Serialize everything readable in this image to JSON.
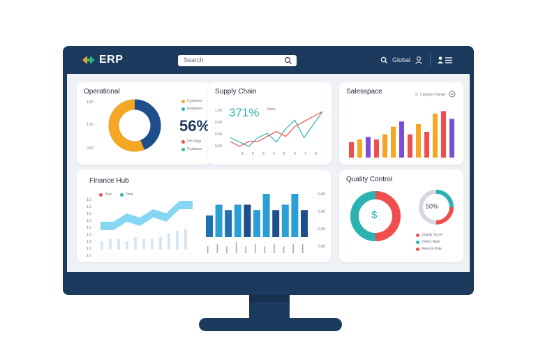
{
  "app": {
    "logo_text": "ERP"
  },
  "search": {
    "placeholder": "Search"
  },
  "topbar": {
    "user_label": "Global"
  },
  "colors": {
    "frame": "#1c3a5e",
    "screen": "#eef1f6",
    "navy": "#1f4e8c",
    "orange": "#f5a623",
    "green": "#2bbf8a",
    "teal": "#2ab3b1",
    "red": "#f04e4e",
    "purple": "#7a4ed9",
    "lightblue": "#6fcff0"
  },
  "operational": {
    "title": "Operational",
    "y_ticks": [
      "1/10",
      "1.00",
      "0.00"
    ],
    "value": "56%",
    "legend": [
      {
        "label": "Customer",
        "color": "#f5a623"
      },
      {
        "label": "Employee",
        "color": "#2ab3b1"
      },
      {
        "label": "Oth Orgs",
        "color": "#f04e4e"
      },
      {
        "label": "Customer",
        "color": "#2bbf8a"
      }
    ],
    "chart_data": {
      "type": "pie",
      "values": [
        44,
        56
      ],
      "colors": [
        "#1f4e8c",
        "#f5a623"
      ],
      "center_label": "56%"
    }
  },
  "supply_chain": {
    "title": "Supply Chain",
    "value": "371%",
    "value_sub": "Sales",
    "y_ticks": [
      "1.00",
      "0.00",
      "0.00",
      "0.00"
    ],
    "x_ticks": [
      "1",
      "2",
      "3",
      "4",
      "5",
      "6",
      "7",
      "8"
    ],
    "chart_data": {
      "type": "line",
      "series": [
        {
          "color": "#2ab3b1",
          "values": [
            3,
            2,
            1,
            3,
            4,
            2,
            5,
            7,
            3,
            6,
            9
          ]
        },
        {
          "color": "#f04e4e",
          "values": [
            2,
            1,
            2,
            2,
            3,
            4,
            3,
            5,
            6,
            7,
            8
          ]
        }
      ]
    }
  },
  "sales": {
    "title": "Salesspace",
    "legend_label": "Category Range",
    "chart_data": {
      "type": "bar",
      "values": [
        3,
        3.5,
        4,
        3.5,
        4.5,
        6,
        7,
        4.5,
        6.5,
        5,
        8.5,
        9,
        7.5
      ],
      "colors": [
        "#f04e4e",
        "#f5a623",
        "#7a4ed9",
        "#f04e4e",
        "#f5a623",
        "#f5a623",
        "#7a4ed9",
        "#f04e4e",
        "#f5a623",
        "#f04e4e",
        "#f5a623",
        "#f04e4e",
        "#7a4ed9"
      ]
    }
  },
  "finance": {
    "title": "Finance Hub",
    "legend": [
      {
        "label": "Year",
        "color": "#f04e4e"
      },
      {
        "label": "Total",
        "color": "#2ab3b1"
      }
    ],
    "y_ticks": [
      "1.0",
      "1.0",
      "1.0",
      "1.0",
      "1.0",
      "1.0",
      "1.0",
      "1.0",
      "1.0"
    ],
    "right_ticks": [
      "0.00",
      "0.00",
      "0.00",
      "0.00"
    ],
    "area_data": {
      "type": "area",
      "values": [
        2,
        2,
        4,
        3,
        5,
        4,
        7,
        7
      ]
    },
    "bars_light": {
      "type": "bar",
      "values": [
        4,
        5,
        5,
        4,
        6,
        5,
        5,
        6,
        8,
        9,
        10
      ]
    },
    "bars_main": {
      "type": "bar",
      "values": [
        4,
        6,
        5,
        6,
        6,
        5,
        8,
        5,
        6,
        8,
        5
      ]
    },
    "ticks_light": {
      "type": "bar",
      "values": [
        3,
        4,
        3,
        5,
        3,
        4,
        3,
        4,
        3,
        4,
        4
      ]
    }
  },
  "quality": {
    "title": "Quality Control",
    "icon_label": "$",
    "value": "50%",
    "donut_main": {
      "type": "pie",
      "values": [
        50,
        50
      ],
      "colors": [
        "#f04e4e",
        "#2ab3b1"
      ]
    },
    "donut_small": {
      "type": "pie",
      "values": [
        25,
        25,
        50
      ],
      "colors": [
        "#2ab3b1",
        "#f04e4e",
        "#d4d8e0"
      ]
    },
    "legend": [
      {
        "label": "Quality Score",
        "color": "#f04e4e"
      },
      {
        "label": "Defect Rate",
        "color": "#2ab3b1"
      },
      {
        "label": "Rework Rate",
        "color": "#f04e4e"
      }
    ]
  }
}
